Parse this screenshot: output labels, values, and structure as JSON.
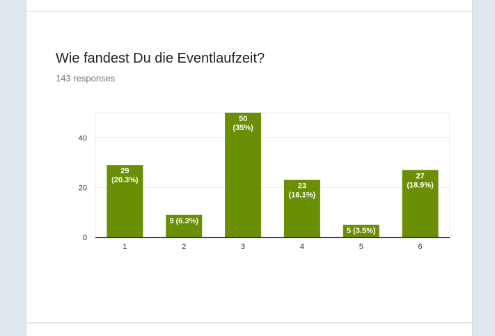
{
  "question": {
    "title": "Wie fandest Du die Eventlaufzeit?",
    "responses": "143 responses"
  },
  "colors": {
    "bar": "#6a8e04",
    "grid": "#ebebeb",
    "axis": "#333333",
    "label": "#ffffff"
  },
  "chart_data": {
    "type": "bar",
    "categories": [
      "1",
      "2",
      "3",
      "4",
      "5",
      "6"
    ],
    "values": [
      29,
      9,
      50,
      23,
      5,
      27
    ],
    "labels": [
      "29\n(20.3%)",
      "9 (6.3%)",
      "50\n(35%)",
      "23\n(16.1%)",
      "5 (3.5%)",
      "27\n(18.9%)"
    ],
    "ylim": [
      0,
      50
    ],
    "yticks": [
      0,
      20,
      40
    ],
    "title": "",
    "xlabel": "",
    "ylabel": "",
    "grid": true
  }
}
